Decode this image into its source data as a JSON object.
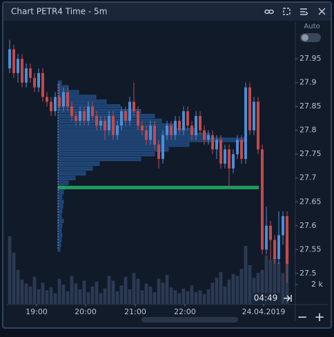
{
  "chart_data": {
    "type": "candlestick",
    "title": "Chart PETR4 Time - 5m",
    "auto_label": "Auto",
    "countdown": "04:49",
    "zoom_out": "−",
    "zoom_in": "+",
    "up_color": "#4a8fd9",
    "down_color": "#c54a4a",
    "ylim": [
      27.436,
      28.027
    ],
    "yticks": [
      27.95,
      27.9,
      27.85,
      27.8,
      27.75,
      27.7,
      27.65,
      27.6,
      27.55,
      27.5
    ],
    "xlim": [
      -0.667,
      69
    ],
    "xticks": [
      {
        "value": 6.5,
        "label": "19:00"
      },
      {
        "value": 18.33,
        "label": "20:00"
      },
      {
        "value": 30.33,
        "label": "21:00"
      },
      {
        "value": 42.33,
        "label": "22:00"
      },
      {
        "value": 61.33,
        "label": "24.04.2019"
      }
    ],
    "open": [
      27.93,
      27.97,
      27.92,
      27.95,
      27.9,
      27.93,
      27.91,
      27.89,
      27.92,
      27.87,
      27.86,
      27.84,
      27.87,
      27.85,
      27.88,
      27.85,
      27.83,
      27.82,
      27.84,
      27.82,
      27.85,
      27.83,
      27.81,
      27.82,
      27.8,
      27.83,
      27.79,
      27.81,
      27.84,
      27.82,
      27.86,
      27.84,
      27.81,
      27.8,
      27.78,
      27.81,
      27.77,
      27.74,
      27.79,
      27.81,
      27.79,
      27.82,
      27.8,
      27.84,
      27.81,
      27.79,
      27.83,
      27.8,
      27.78,
      27.79,
      27.76,
      27.78,
      27.73,
      27.76,
      27.72,
      27.75,
      27.78,
      27.74,
      27.89,
      27.8,
      27.86,
      27.76,
      27.55,
      27.6,
      27.57,
      27.53,
      27.58,
      27.62
    ],
    "high": [
      27.99,
      27.98,
      27.96,
      27.96,
      27.94,
      27.94,
      27.92,
      27.93,
      27.93,
      27.88,
      27.87,
      27.88,
      27.9,
      27.89,
      27.89,
      27.86,
      27.84,
      27.85,
      27.85,
      27.86,
      27.86,
      27.84,
      27.83,
      27.83,
      27.84,
      27.84,
      27.82,
      27.85,
      27.85,
      27.87,
      27.9,
      27.85,
      27.82,
      27.81,
      27.82,
      27.82,
      27.78,
      27.8,
      27.82,
      27.82,
      27.83,
      27.83,
      27.85,
      27.85,
      27.82,
      27.84,
      27.84,
      27.81,
      27.8,
      27.8,
      27.79,
      27.79,
      27.77,
      27.77,
      27.76,
      27.79,
      27.79,
      27.9,
      27.9,
      27.87,
      27.87,
      27.77,
      27.64,
      27.61,
      27.58,
      27.63,
      27.63,
      27.63
    ],
    "low": [
      27.92,
      27.91,
      27.9,
      27.89,
      27.89,
      27.9,
      27.88,
      27.88,
      27.86,
      27.85,
      27.83,
      27.83,
      27.84,
      27.84,
      27.84,
      27.82,
      27.81,
      27.81,
      27.81,
      27.81,
      27.82,
      27.8,
      27.8,
      27.78,
      27.79,
      27.78,
      27.78,
      27.8,
      27.81,
      27.81,
      27.83,
      27.8,
      27.79,
      27.77,
      27.77,
      27.76,
      27.72,
      27.73,
      27.78,
      27.78,
      27.78,
      27.79,
      27.79,
      27.8,
      27.78,
      27.78,
      27.79,
      27.77,
      27.77,
      27.75,
      27.74,
      27.72,
      27.72,
      27.68,
      27.71,
      27.74,
      27.73,
      27.73,
      27.79,
      27.79,
      27.75,
      27.54,
      27.54,
      27.53,
      27.52,
      27.52,
      27.56,
      27.48
    ],
    "close": [
      27.97,
      27.92,
      27.95,
      27.9,
      27.93,
      27.91,
      27.89,
      27.92,
      27.87,
      27.86,
      27.84,
      27.87,
      27.85,
      27.88,
      27.85,
      27.83,
      27.82,
      27.84,
      27.82,
      27.85,
      27.83,
      27.81,
      27.82,
      27.8,
      27.83,
      27.79,
      27.81,
      27.84,
      27.82,
      27.86,
      27.84,
      27.81,
      27.8,
      27.78,
      27.81,
      27.77,
      27.74,
      27.79,
      27.81,
      27.79,
      27.82,
      27.8,
      27.84,
      27.81,
      27.79,
      27.83,
      27.8,
      27.78,
      27.79,
      27.76,
      27.78,
      27.73,
      27.76,
      27.72,
      27.75,
      27.78,
      27.74,
      27.89,
      27.8,
      27.86,
      27.76,
      27.55,
      27.6,
      27.57,
      27.53,
      27.58,
      27.62,
      27.52
    ],
    "volume": [
      7000,
      5300,
      3500,
      2500,
      2100,
      1800,
      2800,
      1500,
      2200,
      1400,
      1700,
      1100,
      2600,
      2000,
      1300,
      2900,
      2100,
      1500,
      2400,
      1200,
      1800,
      2300,
      1100,
      1600,
      2900,
      2400,
      1300,
      1900,
      2800,
      1500,
      3200,
      2600,
      1400,
      2100,
      1800,
      1200,
      2600,
      2200,
      3000,
      1700,
      1400,
      1100,
      1600,
      1300,
      1900,
      1200,
      1400,
      1000,
      1500,
      2200,
      2700,
      3300,
      1800,
      2500,
      3100,
      2900,
      3600,
      6000,
      4000,
      2700,
      3200,
      3500,
      5000,
      4600,
      4900,
      4300,
      3200,
      6500
    ],
    "volume_ylim": [
      0,
      14000
    ],
    "volume_yticks": [
      {
        "value": 2000,
        "label": "2 k"
      }
    ],
    "profile_prices": [
      27.9,
      27.89,
      27.88,
      27.87,
      27.86,
      27.85,
      27.84,
      27.83,
      27.82,
      27.81,
      27.8,
      27.79,
      27.78,
      27.77,
      27.76,
      27.75,
      27.74,
      27.73,
      27.72,
      27.71,
      27.7,
      27.69,
      27.68,
      27.67,
      27.66,
      27.65,
      27.64,
      27.63,
      27.62,
      27.61,
      27.6,
      27.59,
      27.58,
      27.57,
      27.56,
      27.55
    ],
    "profile_values": [
      5,
      15,
      30,
      55,
      70,
      90,
      120,
      140,
      150,
      170,
      200,
      220,
      270,
      190,
      160,
      140,
      120,
      60,
      50,
      40,
      25,
      15,
      10,
      8,
      6,
      8,
      7,
      6,
      5,
      8,
      6,
      5,
      6,
      5,
      4,
      3
    ],
    "profile_start": 11.67,
    "level": 27.68,
    "level_color": "#1f9b5a"
  }
}
